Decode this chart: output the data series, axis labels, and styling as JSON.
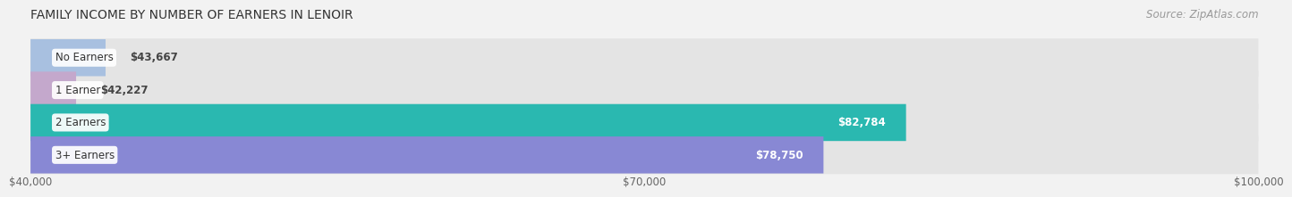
{
  "title": "FAMILY INCOME BY NUMBER OF EARNERS IN LENOIR",
  "source": "Source: ZipAtlas.com",
  "categories": [
    "No Earners",
    "1 Earner",
    "2 Earners",
    "3+ Earners"
  ],
  "values": [
    43667,
    42227,
    82784,
    78750
  ],
  "bar_colors": [
    "#a8c0e0",
    "#c4a8cc",
    "#2ab8b0",
    "#8888d4"
  ],
  "label_colors": [
    "#444444",
    "#444444",
    "#ffffff",
    "#ffffff"
  ],
  "value_inside": [
    false,
    false,
    true,
    true
  ],
  "xmin": 40000,
  "xmax": 100000,
  "xticks": [
    40000,
    70000,
    100000
  ],
  "xtick_labels": [
    "$40,000",
    "$70,000",
    "$100,000"
  ],
  "background_color": "#f2f2f2",
  "bar_background_color": "#e4e4e4",
  "title_fontsize": 10,
  "source_fontsize": 8.5,
  "tick_fontsize": 8.5,
  "label_fontsize": 8.5,
  "bar_label_fontsize": 8.5
}
